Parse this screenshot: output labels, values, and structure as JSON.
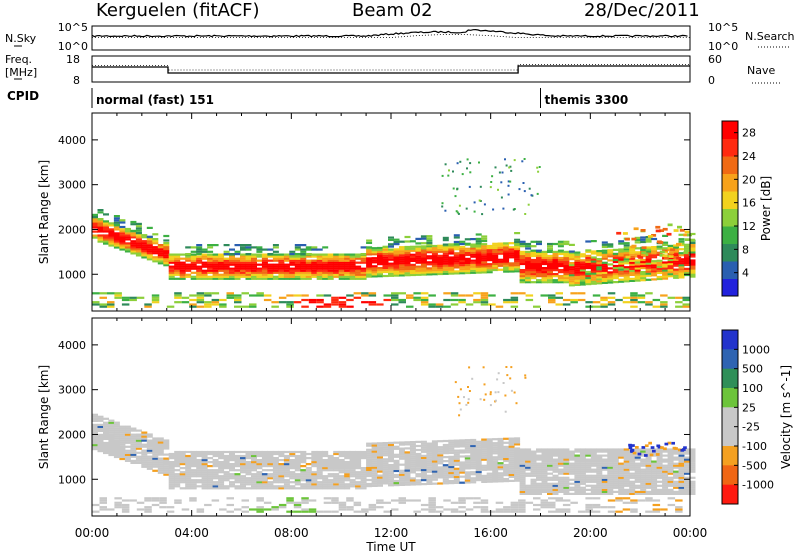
{
  "header": {
    "station": "Kerguelen (fitACF)",
    "beam": "Beam 02",
    "date": "28/Dec/2011"
  },
  "top_panels": {
    "nsky_label": "N.Sky",
    "nsearch_label": "N.Search",
    "noise_ticks_left": [
      "10^5",
      "10^0"
    ],
    "noise_ticks_right": [
      "10^5",
      "10^0"
    ],
    "freq_label_1": "Freq.",
    "freq_label_2": "[MHz]",
    "freq_ticks": [
      "18",
      "8"
    ],
    "nave_label": "Nave",
    "nave_ticks": [
      "60",
      "0"
    ],
    "cpid_label": "CPID",
    "cpid_segments": [
      {
        "label": "normal (fast) 151",
        "start_hour": 0,
        "end_hour": 18
      },
      {
        "label": "themis 3300",
        "start_hour": 18,
        "end_hour": 24
      }
    ]
  },
  "chart_data": [
    {
      "type": "heatmap",
      "name": "power",
      "ylabel": "Slant Range [km]",
      "xlabel": "",
      "x_range_hours": [
        0,
        24
      ],
      "xticks": [
        "00:00",
        "04:00",
        "08:00",
        "12:00",
        "16:00",
        "20:00",
        "00:00"
      ],
      "ylim": [
        180,
        4600
      ],
      "yticks": [
        1000,
        2000,
        3000,
        4000
      ],
      "colorbar": {
        "label": "Power [dB]",
        "ticks": [
          "4",
          "8",
          "12",
          "16",
          "20",
          "24",
          "28"
        ],
        "range": [
          0,
          30
        ],
        "colors": [
          "#2222dd",
          "#2a5fb0",
          "#2e8a5a",
          "#3cb043",
          "#8ccf3a",
          "#f2d21e",
          "#f7a21b",
          "#f06a14",
          "#ff2a10",
          "#ff0000"
        ]
      }
    },
    {
      "type": "heatmap",
      "name": "velocity",
      "ylabel": "Slant Range [km]",
      "xlabel": "Time UT",
      "x_range_hours": [
        0,
        24
      ],
      "xticks": [
        "00:00",
        "04:00",
        "08:00",
        "12:00",
        "16:00",
        "20:00",
        "00:00"
      ],
      "ylim": [
        180,
        4600
      ],
      "yticks": [
        1000,
        2000,
        3000,
        4000
      ],
      "colorbar": {
        "label": "Velocity [m s^-1]",
        "ticks": [
          "1000",
          "500",
          "100",
          "25",
          "-25",
          "-100",
          "-500",
          "-1000"
        ],
        "colors": [
          "#2233cc",
          "#2f64b2",
          "#2f8f58",
          "#6cc43a",
          "#c8c8c8",
          "#c8c8c8",
          "#f4a020",
          "#f06614",
          "#ff1a10"
        ]
      }
    }
  ],
  "colors": {
    "ground_scatter": "#c8c8c8",
    "axis": "#000000"
  }
}
